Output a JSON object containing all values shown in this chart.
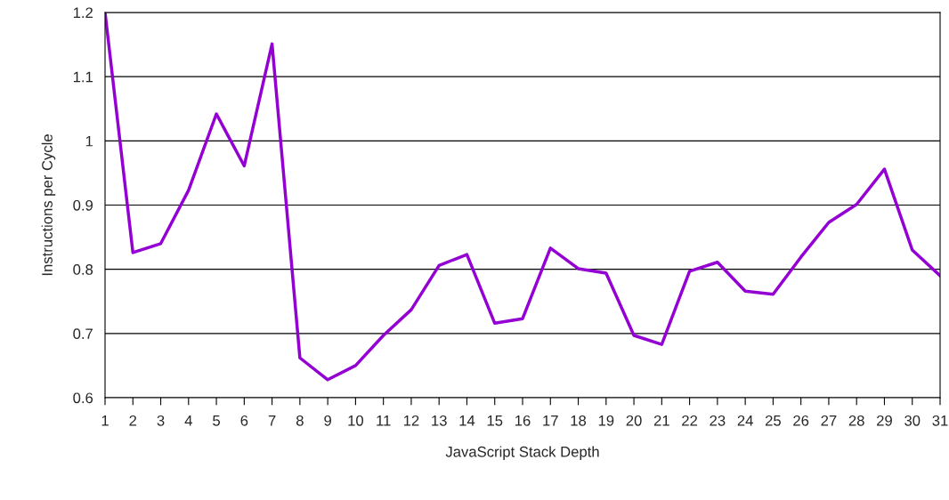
{
  "chart_data": {
    "type": "line",
    "xlabel": "JavaScript Stack Depth",
    "ylabel": "Instructions per Cycle",
    "categories": [
      "1",
      "2",
      "3",
      "4",
      "5",
      "6",
      "7",
      "8",
      "9",
      "10",
      "11",
      "12",
      "13",
      "14",
      "15",
      "16",
      "17",
      "18",
      "19",
      "20",
      "21",
      "22",
      "23",
      "24",
      "25",
      "26",
      "27",
      "28",
      "29",
      "30",
      "31"
    ],
    "series": [
      {
        "color": "#9400d3",
        "values": [
          1.2,
          0.826,
          0.84,
          0.923,
          1.042,
          0.961,
          1.151,
          0.662,
          0.628,
          0.65,
          0.697,
          0.737,
          0.806,
          0.823,
          0.716,
          0.723,
          0.833,
          0.801,
          0.794,
          0.697,
          0.683,
          0.797,
          0.811,
          0.766,
          0.761,
          0.819,
          0.873,
          0.901,
          0.956,
          0.83,
          0.79
        ]
      }
    ],
    "ylim": [
      0.6,
      1.2
    ],
    "yticks": [
      0.6,
      0.7,
      0.8,
      0.9,
      1,
      1.1,
      1.2
    ],
    "grid": "y",
    "marker": "none",
    "line_style": "solid"
  }
}
